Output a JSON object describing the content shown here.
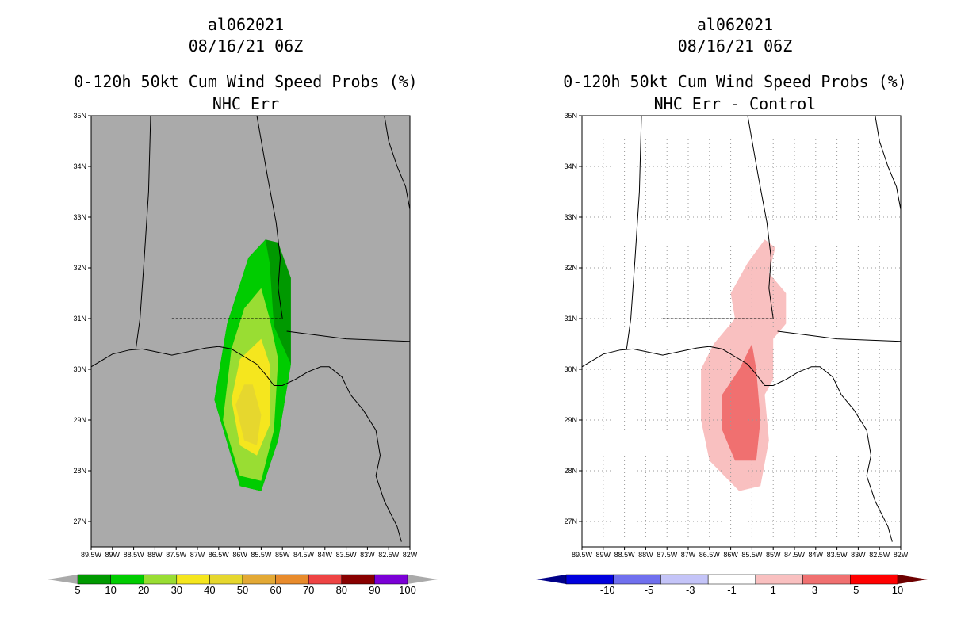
{
  "chart_data": [
    {
      "type": "heatmap",
      "storm_id": "al062021",
      "datetime": "08/16/21 06Z",
      "title": "0-120h 50kt Cum Wind Speed Probs (%)",
      "subtitle": "NHC Err",
      "background": "#aaaaaa",
      "lon_range": [
        -89.5,
        -82
      ],
      "lat_range": [
        26.5,
        35
      ],
      "lat_labels": [
        "35N",
        "34N",
        "33N",
        "32N",
        "31N",
        "30N",
        "29N",
        "28N",
        "27N"
      ],
      "lon_labels": [
        "89.5W",
        "89W",
        "88.5W",
        "88W",
        "87.5W",
        "87W",
        "86.5W",
        "86W",
        "85.5W",
        "85W",
        "84.5W",
        "84W",
        "83.5W",
        "83W",
        "82.5W",
        "82W"
      ],
      "contours": [
        {
          "level": "5",
          "color": "#009900",
          "polygon": [
            [
              -85.4,
              32.56
            ],
            [
              -85.1,
              32.5
            ],
            [
              -84.8,
              31.8
            ],
            [
              -84.8,
              30.1
            ],
            [
              -85.1,
              28.6
            ],
            [
              -85.5,
              27.6
            ],
            [
              -86,
              27.7
            ],
            [
              -86.6,
              29.4
            ],
            [
              -86.3,
              30.9
            ],
            [
              -85.8,
              32.2
            ]
          ]
        },
        {
          "level": "10",
          "color": "#00cc00",
          "polygon": [
            [
              -85.4,
              32.55
            ],
            [
              -85.8,
              32.2
            ],
            [
              -86.3,
              30.9
            ],
            [
              -86.6,
              29.4
            ],
            [
              -86,
              27.7
            ],
            [
              -85.5,
              27.6
            ],
            [
              -85.1,
              28.6
            ],
            [
              -84.8,
              30.1
            ],
            [
              -85.2,
              30.85
            ],
            [
              -85.3,
              32.1
            ]
          ]
        },
        {
          "level": "20",
          "color": "#99dd33",
          "polygon": [
            [
              -85.5,
              31.6
            ],
            [
              -85.3,
              31.0
            ],
            [
              -85.1,
              30.2
            ],
            [
              -85.2,
              28.8
            ],
            [
              -85.5,
              27.8
            ],
            [
              -86.0,
              27.9
            ],
            [
              -86.4,
              29.0
            ],
            [
              -86.2,
              30.4
            ],
            [
              -85.9,
              31.2
            ]
          ]
        },
        {
          "level": "30",
          "color": "#f5e61e",
          "polygon": [
            [
              -85.5,
              30.6
            ],
            [
              -85.3,
              30.1
            ],
            [
              -85.3,
              28.9
            ],
            [
              -85.6,
              28.3
            ],
            [
              -86.0,
              28.5
            ],
            [
              -86.2,
              29.4
            ],
            [
              -86.0,
              30.2
            ]
          ]
        },
        {
          "level": "40",
          "color": "#e6d72e",
          "polygon": [
            [
              -85.7,
              29.7
            ],
            [
              -85.5,
              29.1
            ],
            [
              -85.6,
              28.5
            ],
            [
              -85.9,
              28.6
            ],
            [
              -86.1,
              29.3
            ],
            [
              -85.9,
              29.7
            ]
          ]
        }
      ],
      "colorbar": {
        "labels": [
          "5",
          "10",
          "20",
          "30",
          "40",
          "50",
          "60",
          "70",
          "80",
          "90",
          "100"
        ],
        "colors": [
          "#009900",
          "#00cc00",
          "#99dd33",
          "#f5e61e",
          "#e6d72e",
          "#e3a935",
          "#e88b2c",
          "#ee4444",
          "#880000",
          "#7b00d6"
        ],
        "extend_colors": [
          "#aaaaaa",
          "#aaaaaa"
        ]
      }
    },
    {
      "type": "heatmap",
      "storm_id": "al062021",
      "datetime": "08/16/21 06Z",
      "title": "0-120h 50kt Cum Wind Speed Probs (%)",
      "subtitle": "NHC Err - Control",
      "background": "#ffffff",
      "lon_range": [
        -89.5,
        -82
      ],
      "lat_range": [
        26.5,
        35
      ],
      "lat_labels": [
        "35N",
        "34N",
        "33N",
        "32N",
        "31N",
        "30N",
        "29N",
        "28N",
        "27N"
      ],
      "lon_labels": [
        "89.5W",
        "89W",
        "88.5W",
        "88W",
        "87.5W",
        "87W",
        "86.5W",
        "86W",
        "85.5W",
        "85W",
        "84.5W",
        "84W",
        "83.5W",
        "83W",
        "82.5W",
        "82W"
      ],
      "contours": [
        {
          "level": "1",
          "color": "#f9c0c0",
          "polygon": [
            [
              -85.2,
              32.56
            ],
            [
              -84.95,
              32.4
            ],
            [
              -85.1,
              31.9
            ],
            [
              -84.7,
              31.5
            ],
            [
              -84.7,
              30.9
            ],
            [
              -85.0,
              30.6
            ],
            [
              -85.0,
              29.8
            ],
            [
              -85.2,
              29.5
            ],
            [
              -85.1,
              28.6
            ],
            [
              -85.3,
              27.7
            ],
            [
              -85.8,
              27.6
            ],
            [
              -86.5,
              28.2
            ],
            [
              -86.7,
              29.0
            ],
            [
              -86.7,
              30.0
            ],
            [
              -86.4,
              30.5
            ],
            [
              -85.9,
              31.0
            ],
            [
              -86.0,
              31.5
            ],
            [
              -85.6,
              32.1
            ]
          ]
        },
        {
          "level": "3",
          "color": "#f07070",
          "polygon": [
            [
              -85.5,
              30.5
            ],
            [
              -85.4,
              30.0
            ],
            [
              -85.3,
              29.0
            ],
            [
              -85.4,
              28.2
            ],
            [
              -85.9,
              28.2
            ],
            [
              -86.2,
              28.8
            ],
            [
              -86.2,
              29.5
            ],
            [
              -85.8,
              30.0
            ]
          ]
        }
      ],
      "colorbar": {
        "labels": [
          "-10",
          "-5",
          "-3",
          "-1",
          "1",
          "3",
          "5",
          "10"
        ],
        "colors": [
          "#0000dd",
          "#7070ee",
          "#c4c4f8",
          "#ffffff",
          "#f9c0c0",
          "#f07070",
          "#ff0000"
        ],
        "extend_colors": [
          "#000088",
          "#6e0000"
        ]
      }
    }
  ]
}
